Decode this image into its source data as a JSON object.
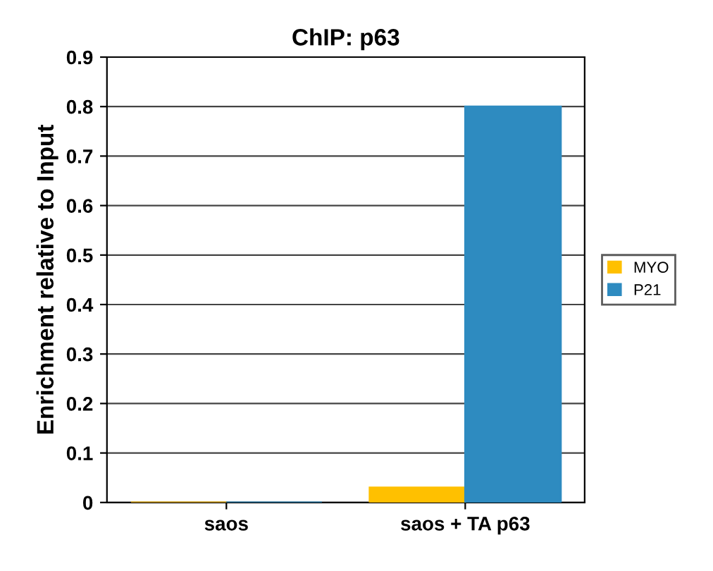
{
  "chart_data": {
    "type": "bar",
    "title": "ChIP: p63",
    "ylabel": "Enrichment relative to Input",
    "categories": [
      "saos",
      "saos + TA p63"
    ],
    "series": [
      {
        "name": "MYO",
        "color": "#ffc000",
        "values": [
          0.0,
          0.03
        ]
      },
      {
        "name": "P21",
        "color": "#2e8bc0",
        "values": [
          0.0,
          0.8
        ]
      }
    ],
    "ylim": [
      0,
      0.9
    ],
    "yticks": [
      0,
      0.1,
      0.2,
      0.3,
      0.4,
      0.5,
      0.6,
      0.7,
      0.8,
      0.9
    ],
    "grid": "y",
    "legend": "right"
  }
}
